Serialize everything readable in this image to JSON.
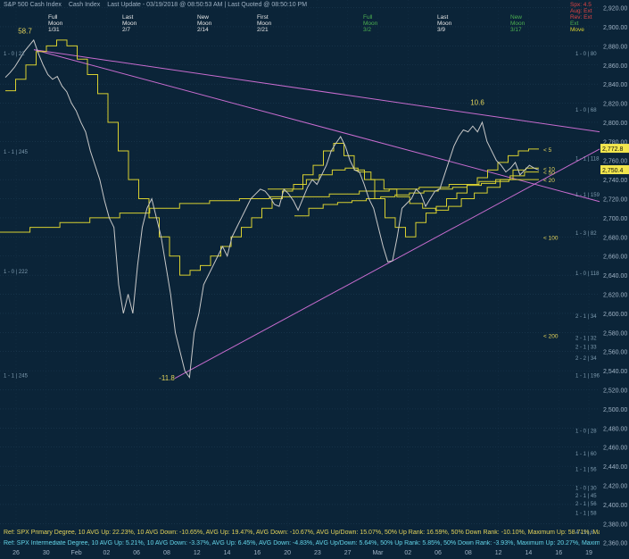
{
  "header": {
    "title": "S&P 500 Cash Index",
    "subtitle": "Cash Index",
    "last_update": "Last Update - 03/19/2018 @ 08:50:53 AM | Last Quoted @ 08:50:10 PM"
  },
  "moon_phases": [
    {
      "phase": "Full",
      "word": "Moon",
      "date": "1/31",
      "color": "#e6e6e6"
    },
    {
      "phase": "Last",
      "word": "Moon",
      "date": "2/7",
      "color": "#e6e6e6"
    },
    {
      "phase": "New",
      "word": "Moon",
      "date": "2/14",
      "color": "#e6e6e6"
    },
    {
      "phase": "First",
      "word": "Moon",
      "date": "2/21",
      "color": "#e6e6e6"
    },
    {
      "phase": "Full",
      "word": "Moon",
      "date": "3/2",
      "color": "#4caf50"
    },
    {
      "phase": "Last",
      "word": "Moon",
      "date": "3/9",
      "color": "#e6e6e6"
    },
    {
      "phase": "New",
      "word": "Moon",
      "date": "3/17",
      "color": "#4caf50"
    }
  ],
  "corner_labels": {
    "a": "Spx: 4.5",
    "b": "Aug: Ext",
    "c": "Rev: Ext",
    "d": "Ext",
    "e": "Move"
  },
  "chart_data": {
    "type": "line",
    "y_ticks": [
      2360,
      2380,
      2400,
      2420,
      2440,
      2460,
      2480,
      2500,
      2520,
      2540,
      2560,
      2580,
      2600,
      2620,
      2640,
      2660,
      2680,
      2700,
      2720,
      2740,
      2760,
      2780,
      2800,
      2820,
      2840,
      2860,
      2880,
      2900,
      2920
    ],
    "ylim": [
      2356,
      2928
    ],
    "x_ticks": [
      "26",
      "30",
      "Feb",
      "02",
      "06",
      "08",
      "12",
      "14",
      "16",
      "20",
      "23",
      "27",
      "Mar",
      "02",
      "06",
      "08",
      "12",
      "14",
      "16",
      "19"
    ],
    "price_labels": [
      {
        "text": "2,772.8",
        "value": 2772.8
      },
      {
        "text": "2,750.4",
        "value": 2750.4
      }
    ],
    "peak_labels": [
      {
        "text": "58.7",
        "x": 5,
        "y": 2893
      },
      {
        "text": "-11.8",
        "x": 67,
        "y": 2530
      },
      {
        "text": "10.6",
        "x": 189,
        "y": 2818
      }
    ],
    "level_labels": [
      {
        "text": "1 - 0 | 22",
        "y": 2873,
        "side": "left"
      },
      {
        "text": "1 - 1 | 245",
        "y": 2770,
        "side": "left"
      },
      {
        "text": "1 - 0 | 222",
        "y": 2645,
        "side": "left"
      },
      {
        "text": "1 - 1 | 245",
        "y": 2536,
        "side": "left"
      },
      {
        "text": "1 - 0 | 80",
        "y": 2873,
        "side": "right"
      },
      {
        "text": "1 - 0 | 68",
        "y": 2814,
        "side": "right"
      },
      {
        "text": "1 - 1 | 118",
        "y": 2763,
        "side": "right"
      },
      {
        "text": "1 - 1 | 159",
        "y": 2725,
        "side": "right"
      },
      {
        "text": "1 - 3 | 82",
        "y": 2685,
        "side": "right"
      },
      {
        "text": "1 - 0 | 118",
        "y": 2643,
        "side": "right"
      },
      {
        "text": "2 - 1 | 34",
        "y": 2598,
        "side": "right"
      },
      {
        "text": "2 - 1 | 32",
        "y": 2575,
        "side": "right"
      },
      {
        "text": "2 - 1 | 33",
        "y": 2566,
        "side": "right"
      },
      {
        "text": "2 - 2 | 34",
        "y": 2554,
        "side": "right"
      },
      {
        "text": "1 - 1 | 196",
        "y": 2536,
        "side": "right"
      },
      {
        "text": "1 - 0 | 28",
        "y": 2478,
        "side": "right"
      },
      {
        "text": "1 - 1 | 60",
        "y": 2454,
        "side": "right"
      },
      {
        "text": "1 - 1 | 56",
        "y": 2438,
        "side": "right"
      },
      {
        "text": "1 - 0 | 30",
        "y": 2418,
        "side": "right"
      },
      {
        "text": "2 - 1 | 45",
        "y": 2410,
        "side": "right"
      },
      {
        "text": "2 - 1 | 56",
        "y": 2402,
        "side": "right"
      },
      {
        "text": "1 - 1 | 58",
        "y": 2392,
        "side": "right"
      },
      {
        "text": "4 - 1 | 6",
        "y": 2372,
        "side": "right"
      }
    ],
    "ma_labels": [
      {
        "text": "< 5",
        "y": 2772
      },
      {
        "text": "< 10",
        "y": 2752
      },
      {
        "text": "< 20",
        "y": 2740
      },
      {
        "text": "< 50",
        "y": 2748
      },
      {
        "text": "< 100",
        "y": 2680
      },
      {
        "text": "< 200",
        "y": 2577
      }
    ],
    "series": [
      {
        "color": "#c9c9c9",
        "values": [
          2847,
          2852,
          2858,
          2866,
          2874,
          2880,
          2886,
          2872,
          2860,
          2850,
          2845,
          2848,
          2838,
          2832,
          2820,
          2812,
          2800,
          2790,
          2770,
          2755,
          2740,
          2718,
          2700,
          2690,
          2630,
          2600,
          2620,
          2600,
          2650,
          2690,
          2710,
          2720,
          2700,
          2680,
          2650,
          2620,
          2580,
          2560,
          2540,
          2533,
          2580,
          2600,
          2630,
          2640,
          2650,
          2660,
          2670,
          2660,
          2680,
          2690,
          2700,
          2710,
          2720,
          2725,
          2730,
          2728,
          2722,
          2714,
          2712,
          2730,
          2725,
          2718,
          2708,
          2720,
          2732,
          2740,
          2735,
          2745,
          2755,
          2770,
          2778,
          2785,
          2775,
          2760,
          2750,
          2748,
          2735,
          2720,
          2710,
          2690,
          2670,
          2654,
          2655,
          2680,
          2710,
          2715,
          2720,
          2730,
          2725,
          2712,
          2720,
          2728,
          2730,
          2745,
          2760,
          2775,
          2785,
          2792,
          2790,
          2796,
          2790,
          2800,
          2780,
          2770,
          2760,
          2755,
          2748,
          2752,
          2758,
          2745,
          2750,
          2755,
          2752,
          2750
        ]
      }
    ],
    "moving_averages": [
      {
        "name": "",
        "color": "#d8d030",
        "values": [
          2833,
          2845,
          2860,
          2874,
          2880,
          2886,
          2880,
          2866,
          2850,
          2830,
          2800,
          2770,
          2740,
          2720,
          2700,
          2680,
          2660,
          2640,
          2645,
          2650,
          2660,
          2670,
          2680,
          2690,
          2700,
          2710,
          2720,
          2728,
          2730,
          2745,
          2755,
          2770,
          2778,
          2765,
          2750,
          2740,
          2720,
          2700,
          2690,
          2680,
          2695,
          2705,
          2712,
          2720,
          2726,
          2735,
          2742,
          2750,
          2758,
          2765,
          2770,
          2772
        ]
      },
      {
        "name": "",
        "color": "#d8d030",
        "values": [
          2730,
          2730,
          2735,
          2740,
          2745,
          2750,
          2752,
          2748,
          2740,
          2730,
          2722,
          2715,
          2710,
          2708,
          2712,
          2720,
          2726,
          2732,
          2740,
          2750,
          2752
        ]
      },
      {
        "name": "",
        "color": "#d8d030",
        "values": [
          2685,
          2690,
          2695,
          2700,
          2705,
          2710,
          2715,
          2718,
          2720,
          2722,
          2722,
          2725,
          2728,
          2730,
          2732,
          2735,
          2738,
          2740
        ]
      },
      {
        "name": "",
        "color": "#d8d030",
        "values": [
          2702,
          2710,
          2714,
          2716,
          2718,
          2720,
          2722,
          2724,
          2726,
          2728,
          2730,
          2732,
          2734,
          2736,
          2740,
          2744,
          2748
        ]
      }
    ],
    "trend_lines": [
      {
        "color": "#c86ccf",
        "from": [
          2876
        ],
        "to": [
          2790
        ]
      },
      {
        "color": "#c86ccf",
        "from": [
          2876
        ],
        "to": [
          2717
        ]
      },
      {
        "color": "#c86ccf",
        "from": [
          2532
        ],
        "to": [
          2772
        ]
      }
    ]
  },
  "footer": {
    "line1": "Ref: SPX Primary Degree, 10 AVG Up: 22.23%, 10 AVG Down: -10.65%, AVG Up: 19.47%, AVG Down: -10.67%, AVG Up/Down: 15.07%, 50% Up Rank: 16.59%, 50% Down Rank: -10.10%, Maximum Up: 58.71%, Maximum",
    "line2": "Ref: SPX Intermediate Degree, 10 AVG Up: 5.21%, 10 AVG Down: -3.37%, AVG Up: 6.45%, AVG Down: -4.83%, AVG Up/Down: 5.64%, 50% Up Rank: 5.85%, 50% Down Rank: -3.93%, Maximum Up: 20.27%, Maximum Dc"
  }
}
